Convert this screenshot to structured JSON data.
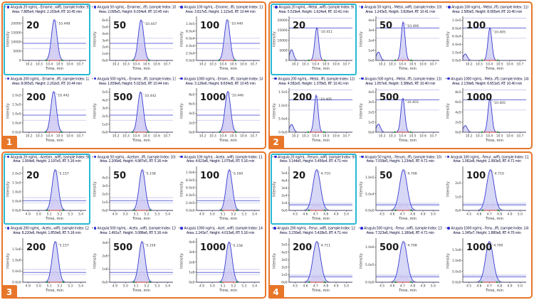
{
  "figure": {
    "xlabel": "Time, min",
    "ylabel": "Intensity",
    "header_marker": "*",
    "colors": {
      "quadrant_border": "#e8762a",
      "badge_bg": "#e8762a",
      "badge_text": "#ffffff",
      "selected_border": "#27b9d4",
      "peak_stroke": "#3a3ad0",
      "peak_fill": "#c9cbf3",
      "inner_stroke": "#c957cf",
      "inner_fill": "#eec3ea",
      "threshold_light": "#b6b9ec",
      "threshold_dark": "#6468d8",
      "baseline_red": "#c0392b",
      "marker_green": "#2e9e4f",
      "axis": "#444444",
      "header_text": "#101040",
      "diamond_blue": "#2a2ad4",
      "conc_text": "#1b1b1b",
      "rt_text": "#333333"
    }
  },
  "chart_data": [
    {
      "type": "area",
      "group": 1,
      "badge": "1",
      "x_ticks": [
        "10.2",
        "10.3",
        "10.4",
        "10.5",
        "10.6",
        "10.7"
      ],
      "x_range": [
        10.14,
        10.76
      ],
      "sigma_min": 0.027,
      "threshold_fracs": [
        0.28,
        0.4,
        0.52
      ],
      "inner_frac": 0.42,
      "panels": [
        {
          "conc": "20",
          "selected": true,
          "sample_index": 9,
          "header1": "Arugula 20 ng/mL - Emame...wiff), (sample Index: 9)",
          "header2": "Area: 7.885e4, Height: 2.203e4, RT: 10.45 min",
          "area": "7.885e4",
          "height": "2.203e4",
          "rt_min": "10.45",
          "peak_label": "10.448",
          "y_ticks": [
            "20000",
            "15000",
            "10000",
            "5000",
            "0"
          ]
        },
        {
          "conc": "50",
          "selected": false,
          "sample_index": 10,
          "header1": "Arugula 50 ng/mL - Emamec...iff), (sample Index: 10)",
          "header2": "Area: 2.095e5, Height: 6.034e4, RT: 10.45 min",
          "area": "2.095e5",
          "height": "6.034e4",
          "rt_min": "10.45",
          "peak_label": "10.447",
          "y_ticks": [
            "6e4",
            "5e4",
            "4e4",
            "3e4",
            "2e4",
            "1e4",
            "0e0"
          ]
        },
        {
          "conc": "100",
          "selected": false,
          "sample_index": 11,
          "header1": "Arugula 100 ng/mL - Emame...iff), (sample Index: 11)",
          "header2": "Area: 3.817e5, Height: 1.115e5, RT: 10.44 min",
          "area": "3.817e5",
          "height": "1.115e5",
          "rt_min": "10.44",
          "peak_label": "10.440",
          "y_ticks": [
            "1.0e5",
            "8.0e4",
            "6.0e4",
            "4.0e4",
            "2.0e4",
            "0.0e0"
          ]
        },
        {
          "conc": "200",
          "selected": false,
          "sample_index": 12,
          "header1": "Arugula 200 ng/mL - Emame...iff), (sample Index: 12)",
          "header2": "Area: 8.065e5, Height: 2.202e5, RT: 10.44 min",
          "area": "8.065e5",
          "height": "2.202e5",
          "rt_min": "10.44",
          "peak_label": "10.442",
          "y_ticks": [
            "2.0e5",
            "1.5e5",
            "1.0e5",
            "5.0e4",
            "0.0e0"
          ]
        },
        {
          "conc": "500",
          "selected": false,
          "sample_index": 13,
          "header1": "Arugula 500 ng/mL - Emame...iff), (sample Index: 13)",
          "header2": "Area: 1.839e6, Height: 5.023e5, RT: 10.44 min",
          "area": "1.839e6",
          "height": "5.023e5",
          "rt_min": "10.44",
          "peak_label": "10.442",
          "y_ticks": [
            "5e5",
            "4e5",
            "3e5",
            "2e5",
            "1e5",
            "0e0"
          ]
        },
        {
          "conc": "1000",
          "selected": false,
          "sample_index": 14,
          "header1": "Arugula 1000 ng/mL - Emam...iff), (sample Index: 14)",
          "header2": "Area: 3.126e6, Height: 8.634e5, RT: 10.45 min",
          "area": "3.126e6",
          "height": "8.634e5",
          "rt_min": "10.45",
          "peak_label": "10.446",
          "y_ticks": [
            "8e5",
            "6e5",
            "4e5",
            "2e5",
            "0e0"
          ]
        }
      ]
    },
    {
      "type": "area",
      "group": 2,
      "badge": "2",
      "x_ticks": [
        "10.2",
        "10.3",
        "10.4",
        "10.5",
        "10.6",
        "10.7"
      ],
      "x_range": [
        10.14,
        10.76
      ],
      "sigma_min": 0.019,
      "threshold_fracs": [
        0.52,
        0.76,
        0.99
      ],
      "inner_frac": 0.08,
      "panels": [
        {
          "conc": "20",
          "selected": true,
          "sample_index": 9,
          "bump": 0.33,
          "header1": "Arugula 20 ng/mL - Metal...wiff), (sample Index: 9)",
          "header2": "Area: 5.529e4, Height: 1.624e4, RT: 10.41 min",
          "area": "5.529e4",
          "height": "1.624e4",
          "rt_min": "10.41",
          "peak_label": "10.411",
          "y_ticks": [
            "20000",
            "15000",
            "10000",
            "5000",
            "0"
          ]
        },
        {
          "conc": "50",
          "selected": false,
          "sample_index": 10,
          "bump": 0.22,
          "header1": "Arugula 50 ng/mL - Metal...wiff), (sample Index: 10)",
          "header2": "Area: 1.243e5, Height: 3.826e4, RT: 10.41 min",
          "area": "1.243e5",
          "height": "3.826e4",
          "rt_min": "10.41",
          "peak_label": "10.406",
          "y_ticks": [
            "4e4",
            "3e4",
            "2e4",
            "1e4",
            "0e0"
          ]
        },
        {
          "conc": "100",
          "selected": false,
          "sample_index": 11,
          "bump": 0.2,
          "header1": "Arugula 100 ng/mL - Metal...iff), (sample Index: 11)",
          "header2": "Area: 2.580e5, Height: 8.065e4, RT: 10.40 min",
          "area": "2.580e5",
          "height": "8.065e4",
          "rt_min": "10.40",
          "peak_label": "10.405",
          "y_ticks": [
            "1.0e5",
            "8.0e4",
            "6.0e4",
            "4.0e4",
            "2.0e4",
            "0.0e0"
          ]
        },
        {
          "conc": "200",
          "selected": false,
          "sample_index": 12,
          "bump": 0.21,
          "header1": "Arugula 200 ng/mL - Metal...iff), (sample Index: 12)",
          "header2": "Area: 4.582e5, Height: 1.378e5, RT: 10.41 min",
          "area": "4.582e5",
          "height": "1.378e5",
          "rt_min": "10.41",
          "peak_label": "10.405",
          "y_ticks": [
            "1.5e5",
            "1.0e5",
            "5.0e4",
            "0.0e0"
          ]
        },
        {
          "conc": "500",
          "selected": false,
          "sample_index": 13,
          "bump": 0.24,
          "header1": "Arugula 500 ng/mL - Metal...iff), (sample Index: 13)",
          "header2": "Area: 1.057e6, Height: 3.386e5, RT: 10.40 min",
          "area": "1.057e6",
          "height": "3.386e5",
          "rt_min": "10.40",
          "peak_label": "10.403",
          "y_ticks": [
            "4e5",
            "3e5",
            "2e5",
            "1e5",
            "0e0"
          ]
        },
        {
          "conc": "1000",
          "selected": false,
          "sample_index": 14,
          "bump": 0.2,
          "header1": "Arugula 1000 ng/mL - Meta...iff), (sample Index: 14)",
          "header2": "Area: 2.139e6, Height: 6.651e5, RT: 10.40 min",
          "area": "2.139e6",
          "height": "6.651e5",
          "rt_min": "10.40",
          "peak_label": "10.405",
          "y_ticks": [
            "8e5",
            "6e5",
            "4e5",
            "2e5",
            "0e0"
          ]
        }
      ]
    },
    {
      "type": "area",
      "group": 3,
      "badge": "3",
      "x_ticks": [
        "4.9",
        "5.0",
        "5.1",
        "5.2",
        "5.3",
        "5.4"
      ],
      "x_range": [
        4.85,
        5.45
      ],
      "sigma_min": 0.029,
      "threshold_fracs": [
        0.18,
        0.23,
        0.3
      ],
      "inner_frac": 0.27,
      "panels": [
        {
          "conc": "20",
          "selected": true,
          "sample_index": 9,
          "header1": "Arugula 20 ng/mL - Acetam...wiff), (sample Index: 9)",
          "header2": "Area: 1.004e6, Height: 2.197e5, RT: 5.16 min",
          "area": "1.004e6",
          "height": "2.197e5",
          "rt_min": "5.16",
          "peak_label": "5.157",
          "y_ticks": [
            "2.0e5",
            "1.5e5",
            "1.0e5",
            "5.0e4",
            "0.0e0"
          ]
        },
        {
          "conc": "50",
          "selected": false,
          "sample_index": 10,
          "header1": "Arugula 50 ng/mL - Acetam...iff), (sample Index: 10)",
          "header2": "Area: 2.206e6, Height: 4.987e5, RT: 5.16 min",
          "area": "2.206e6",
          "height": "4.987e5",
          "rt_min": "5.16",
          "peak_label": "5.158",
          "y_ticks": [
            "4e5",
            "3e5",
            "2e5",
            "1e5",
            "0e0"
          ]
        },
        {
          "conc": "100",
          "selected": false,
          "sample_index": 11,
          "header1": "Arugula 100 ng/mL - Aceta...wiff), (sample Index: 11)",
          "header2": "Area: 4.623e6, Height: 1.075e6, RT: 5.16 min",
          "area": "4.623e6",
          "height": "1.075e6",
          "rt_min": "5.16",
          "peak_label": "5.160",
          "y_ticks": [
            "1.0e6",
            "8.0e5",
            "6.0e5",
            "4.0e5",
            "2.0e5",
            "0.0e0"
          ]
        },
        {
          "conc": "200",
          "selected": false,
          "sample_index": 12,
          "header1": "Arugula 200 ng/mL - Aceta...wiff), (sample Index: 12)",
          "header2": "Area: 8.220e6, Height: 1.850e6, RT: 5.16 min",
          "area": "8.220e6",
          "height": "1.850e6",
          "rt_min": "5.16",
          "peak_label": "5.157",
          "y_ticks": [
            "1.5e6",
            "1.0e6",
            "5.0e5",
            "0.0e0"
          ]
        },
        {
          "conc": "500",
          "selected": false,
          "sample_index": 13,
          "header1": "Arugula 500 ng/mL - Aceta...wiff), (sample Index: 13)",
          "header2": "Area: 1.491e7, Height: 3.086e6, RT: 5.16 min",
          "area": "1.491e7",
          "height": "3.086e6",
          "rt_min": "5.16",
          "peak_label": "5.156",
          "y_ticks": [
            "3e6",
            "2e6",
            "1e6",
            "0e0"
          ]
        },
        {
          "conc": "1000",
          "selected": false,
          "sample_index": 14,
          "header1": "Arugula 1000 ng/mL - Acet...wiff), (sample Index: 14)",
          "header2": "Area: 2.243e7, Height: 4.013e6, RT: 5.16 min",
          "area": "2.243e7",
          "height": "4.013e6",
          "rt_min": "5.16",
          "peak_label": "5.158",
          "y_ticks": [
            "4e6",
            "3e6",
            "2e6",
            "1e6",
            "0e0"
          ]
        }
      ]
    },
    {
      "type": "area",
      "group": 4,
      "badge": "4",
      "x_ticks": [
        "4.5",
        "4.6",
        "4.7",
        "4.8",
        "4.9",
        "5.0"
      ],
      "x_range": [
        4.44,
        5.06
      ],
      "sigma_min": 0.037,
      "threshold_fracs": [
        0.105,
        0.135,
        0.17
      ],
      "inner_frac": 0.14,
      "panels": [
        {
          "conc": "20",
          "selected": true,
          "sample_index": 9,
          "header1": "Arugula 20 ng/mL - Fenuro...wiff), (sample Index: 9)",
          "header2": "Area: 3.144e5, Height: 5.456e4, RT: 4.71 min",
          "area": "3.144e5",
          "height": "5.456e4",
          "rt_min": "4.71",
          "peak_label": "4.710",
          "y_ticks": [
            "5e4",
            "4e4",
            "3e4",
            "2e4",
            "1e4",
            "0e0"
          ]
        },
        {
          "conc": "50",
          "selected": false,
          "sample_index": 10,
          "header1": "Arugula 50 ng/mL - Fenuro...iff), (sample Index: 10)",
          "header2": "Area: 7.039e5, Height: 1.234e5, RT: 4.71 min",
          "area": "7.039e5",
          "height": "1.234e5",
          "rt_min": "4.71",
          "peak_label": "4.708",
          "y_ticks": [
            "1.0e5",
            "5.0e4",
            "0.0e0"
          ]
        },
        {
          "conc": "100",
          "selected": false,
          "sample_index": 11,
          "header1": "Arugula 100 ng/mL - Fenur...wiff), (sample Index: 11)",
          "header2": "Area: 1.062e6, Height: 2.993e5, RT: 4.71 min",
          "area": "1.062e6",
          "height": "2.993e5",
          "rt_min": "4.71",
          "peak_label": "4.710",
          "y_ticks": [
            "2e5",
            "1e5",
            "0e0"
          ]
        },
        {
          "conc": "200",
          "selected": false,
          "sample_index": 12,
          "header1": "Arugula 200 ng/mL - Fenur...wiff), (sample Index: 12)",
          "header2": "Area: 3.230e6, Height: 5.428e5, RT: 4.71 min",
          "area": "3.230e6",
          "height": "5.428e5",
          "rt_min": "4.71",
          "peak_label": "4.711",
          "y_ticks": [
            "5e5",
            "4e5",
            "3e5",
            "2e5",
            "1e5",
            "0e0"
          ]
        },
        {
          "conc": "500",
          "selected": false,
          "sample_index": 13,
          "header1": "Arugula 500 ng/mL - Fenur...wiff), (sample Index: 13)",
          "header2": "Area: 7.323e6, Height: 1.160e6, RT: 4.71 min",
          "area": "7.323e6",
          "height": "1.160e6",
          "rt_min": "4.71",
          "peak_label": "4.708",
          "y_ticks": [
            "1.0e6",
            "5.0e5",
            "0.0e0"
          ]
        },
        {
          "conc": "1000",
          "selected": false,
          "sample_index": 14,
          "header1": "Arugula 1000 ng/mL - Fenu...iff), (sample Index: 14)",
          "header2": "Area: 1.345e7, Height: 1.880e6, RT: 4.70 min",
          "area": "1.345e7",
          "height": "1.880e6",
          "rt_min": "4.70",
          "peak_label": "4.700",
          "y_ticks": [
            "1.5e6",
            "1.0e6",
            "5.0e5",
            "0.0e0"
          ]
        }
      ]
    }
  ]
}
